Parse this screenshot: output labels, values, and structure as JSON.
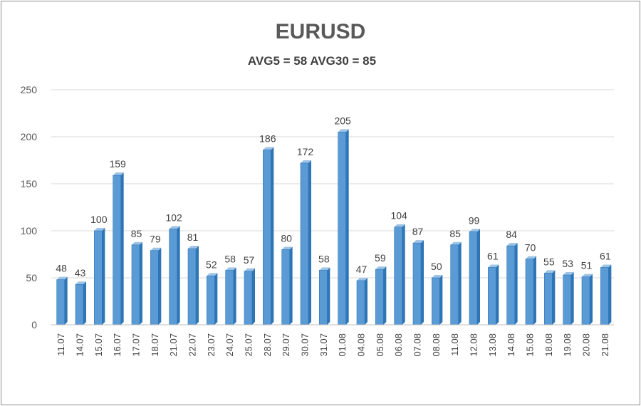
{
  "chart_data": {
    "type": "bar",
    "title": "EURUSD",
    "subtitle": "AVG5 = 58 AVG30 = 85",
    "categories": [
      "11.07",
      "14.07",
      "15.07",
      "16.07",
      "17.07",
      "18.07",
      "21.07",
      "22.07",
      "23.07",
      "24.07",
      "25.07",
      "28.07",
      "29.07",
      "30.07",
      "31.07",
      "01.08",
      "04.08",
      "05.08",
      "06.08",
      "07.08",
      "08.08",
      "11.08",
      "12.08",
      "13.08",
      "14.08",
      "15.08",
      "18.08",
      "19.08",
      "20.08",
      "21.08"
    ],
    "values": [
      48,
      43,
      100,
      159,
      85,
      79,
      102,
      81,
      52,
      58,
      57,
      186,
      80,
      172,
      58,
      205,
      47,
      59,
      104,
      87,
      50,
      85,
      99,
      61,
      84,
      70,
      55,
      53,
      51,
      61
    ],
    "ylim": [
      0,
      250
    ],
    "yticks": [
      0,
      50,
      100,
      150,
      200,
      250
    ],
    "grid": true,
    "data_labels": true,
    "colors": {
      "bar_front": "#5b9bd5",
      "bar_side": "#2e75b6",
      "bar_top": "#9dc3e6",
      "grid": "#d9d9d9"
    }
  }
}
